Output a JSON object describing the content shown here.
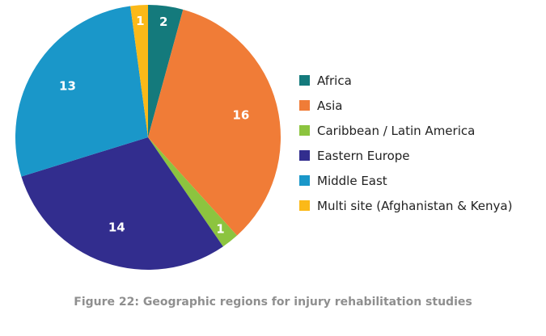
{
  "chart_data": {
    "type": "pie",
    "title": "",
    "slices": [
      {
        "label": "Africa",
        "value": 2,
        "color": "#147a7c"
      },
      {
        "label": "Asia",
        "value": 16,
        "color": "#f07c37"
      },
      {
        "label": "Caribbean / Latin America",
        "value": 1,
        "color": "#8cc43f"
      },
      {
        "label": "Eastern Europe",
        "value": 14,
        "color": "#322d8e"
      },
      {
        "label": "Middle East",
        "value": 13,
        "color": "#1a97c9"
      },
      {
        "label": "Multi site (Afghanistan & Kenya)",
        "value": 1,
        "color": "#fbb918"
      }
    ],
    "legend_position": "right"
  },
  "caption": "Figure 22: Geographic regions for injury rehabilitation studies"
}
